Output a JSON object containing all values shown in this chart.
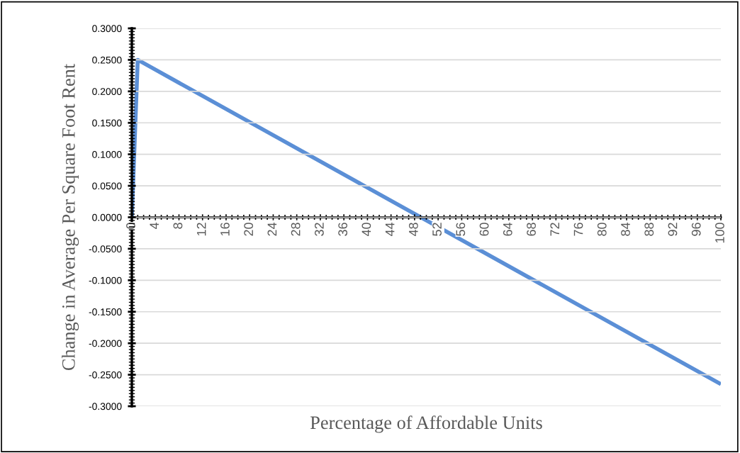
{
  "chart_data": {
    "type": "line",
    "xlabel": "Percentage of Affordable Units",
    "ylabel": "Change in Average Per Square Foot Rent",
    "x": [
      0,
      1,
      100
    ],
    "series": [
      {
        "color": "#5b8fd6",
        "values": [
          0,
          0.25,
          -0.265
        ]
      }
    ],
    "xlim": [
      0,
      100
    ],
    "xticks": [
      0,
      4,
      8,
      12,
      16,
      20,
      24,
      28,
      32,
      36,
      40,
      44,
      48,
      52,
      56,
      60,
      64,
      68,
      72,
      76,
      80,
      84,
      88,
      92,
      96,
      100
    ],
    "ylim": [
      -0.3,
      0.3
    ],
    "yticks": [
      {
        "value": -0.3,
        "label": "-0.3000"
      },
      {
        "value": -0.25,
        "label": "-0.2500"
      },
      {
        "value": -0.2,
        "label": "-0.2000"
      },
      {
        "value": -0.15,
        "label": "-0.1500"
      },
      {
        "value": -0.1,
        "label": "-0.1000"
      },
      {
        "value": -0.05,
        "label": "-0.0500"
      },
      {
        "value": 0,
        "label": "0.0000"
      },
      {
        "value": 0.05,
        "label": "0.0500"
      },
      {
        "value": 0.1,
        "label": "0.1000"
      },
      {
        "value": 0.15,
        "label": "0.1500"
      },
      {
        "value": 0.2,
        "label": "0.2000"
      },
      {
        "value": 0.25,
        "label": "0.2500"
      },
      {
        "value": 0.3,
        "label": "0.3000"
      }
    ],
    "grid": "y",
    "legend": false,
    "marker": "none",
    "line_style": "solid"
  }
}
